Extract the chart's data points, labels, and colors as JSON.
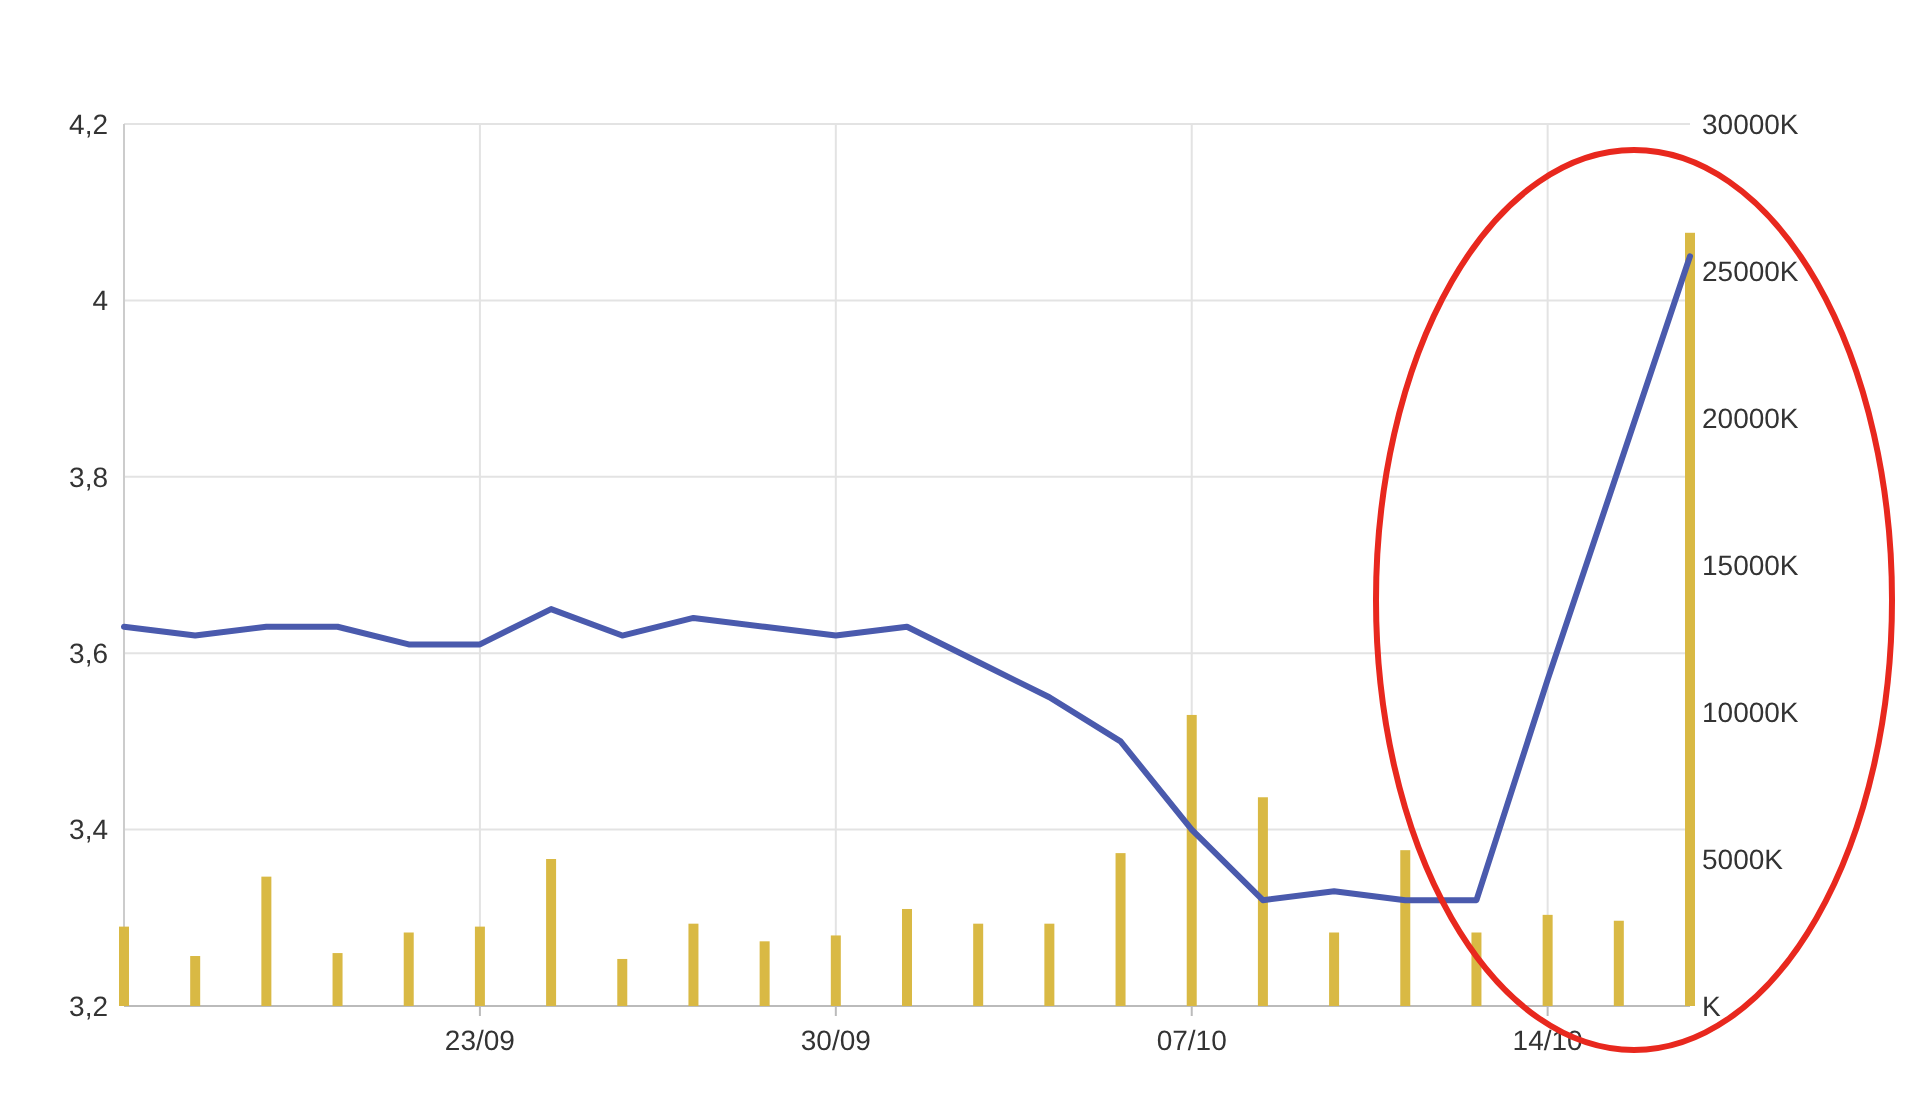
{
  "chart_data": {
    "type": "line",
    "categories": [
      null,
      null,
      null,
      null,
      null,
      "23/09",
      null,
      null,
      null,
      null,
      "30/09",
      null,
      null,
      null,
      null,
      "07/10",
      null,
      null,
      null,
      null,
      "14/10",
      null,
      null
    ],
    "series": [
      {
        "color": "#4a5aad",
        "values": [
          3.63,
          3.62,
          3.63,
          3.63,
          3.61,
          3.61,
          3.65,
          3.62,
          3.64,
          3.63,
          3.62,
          3.63,
          3.59,
          3.55,
          3.5,
          3.4,
          3.32,
          3.33,
          3.32,
          3.32,
          3.57,
          3.81,
          4.05
        ]
      },
      {
        "type": "bar",
        "axis": "y2",
        "color": "#d9b944",
        "values": [
          2700,
          1700,
          4400,
          1800,
          2500,
          2700,
          5000,
          1600,
          2800,
          2200,
          2400,
          3300,
          2800,
          2800,
          5200,
          9900,
          7100,
          2500,
          5300,
          2500,
          3100,
          2900,
          26300
        ]
      }
    ],
    "ylim": [
      3.2,
      4.2
    ],
    "yticks": [
      {
        "value": 3.2,
        "label": "3,2"
      },
      {
        "value": 3.4,
        "label": "3,4"
      },
      {
        "value": 3.6,
        "label": "3,6"
      },
      {
        "value": 3.8,
        "label": "3,8"
      },
      {
        "value": 4,
        "label": "4"
      },
      {
        "value": 4.2,
        "label": "4,2"
      }
    ],
    "y2lim": [
      0,
      30000
    ],
    "y2ticks": [
      {
        "value": 0,
        "label": "K"
      },
      {
        "value": 5000,
        "label": "5000K"
      },
      {
        "value": 10000,
        "label": "10000K"
      },
      {
        "value": 15000,
        "label": "15000K"
      },
      {
        "value": 20000,
        "label": "20000K"
      },
      {
        "value": 25000,
        "label": "25000K"
      },
      {
        "value": 30000,
        "label": "30000K"
      }
    ],
    "grid": true,
    "marker": "none",
    "line_style": "solid"
  }
}
